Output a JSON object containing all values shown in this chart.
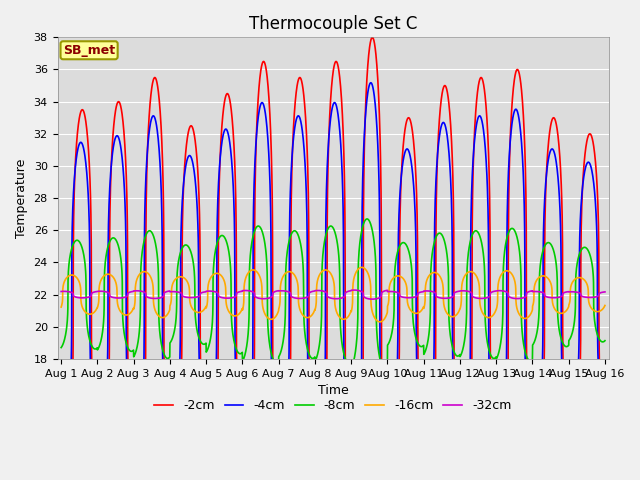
{
  "title": "Thermocouple Set C",
  "xlabel": "Time",
  "ylabel": "Temperature",
  "ylim": [
    18,
    38
  ],
  "annotation": "SB_met",
  "legend_labels": [
    "-2cm",
    "-4cm",
    "-8cm",
    "-16cm",
    "-32cm"
  ],
  "colors": [
    "#ff0000",
    "#0000ff",
    "#00cc00",
    "#ffaa00",
    "#cc00cc"
  ],
  "fig_bg_color": "#f0f0f0",
  "plot_bg_color": "#dcdcdc",
  "grid_color": "#ffffff",
  "title_fontsize": 12,
  "axis_label_fontsize": 9,
  "tick_label_fontsize": 8,
  "legend_fontsize": 9,
  "annotation_fontsize": 9,
  "line_width": 1.2,
  "n_points": 3000,
  "mean": 22.0,
  "depths_amplitudes": [
    8.5,
    7.0,
    2.5,
    0.9,
    0.15
  ],
  "depths_phase_hours": [
    0.0,
    1.0,
    3.5,
    7.0,
    12.0
  ],
  "day_amplitudes_2cm": [
    11.5,
    12.0,
    13.5,
    10.5,
    12.5,
    14.5,
    13.5,
    14.5,
    16.0,
    11.0,
    13.0,
    13.5,
    14.0,
    11.0,
    10.0
  ],
  "peak_sharpness": 3.0
}
